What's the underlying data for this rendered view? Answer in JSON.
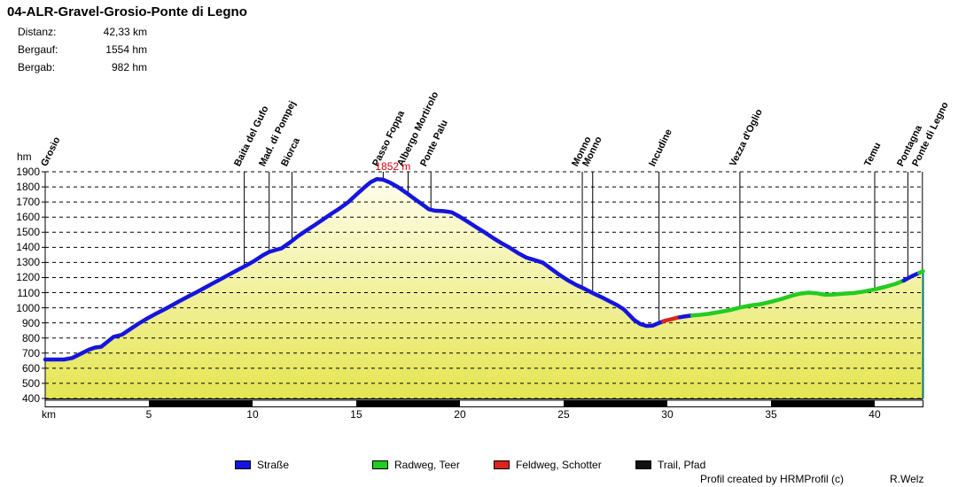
{
  "header": {
    "title": "04-ALR-Gravel-Grosio-Ponte di Legno"
  },
  "stats": [
    {
      "label": "Distanz:",
      "value": "42,33 km"
    },
    {
      "label": "Bergauf:",
      "value": "1554 hm"
    },
    {
      "label": "Bergab:",
      "value": "982 hm"
    }
  ],
  "legend": [
    {
      "label": "Straße",
      "surface": "road"
    },
    {
      "label": "Radweg, Teer",
      "surface": "bike"
    },
    {
      "label": "Feldweg, Schotter",
      "surface": "gravel"
    },
    {
      "label": "Trail, Pfad",
      "surface": "trail"
    }
  ],
  "surface_colors": {
    "road": "#1515dd",
    "bike": "#22cc22",
    "gravel": "#dd2222",
    "trail": "#111111"
  },
  "footer": {
    "created": "Profil created by HRMProfil (c)",
    "author": "R.Welz"
  },
  "chart_data": {
    "type": "area",
    "xlabel": "km",
    "ylabel": "hm",
    "xlim": [
      0,
      42.33
    ],
    "ylim": [
      400,
      1900
    ],
    "x_ticks": [
      5,
      10,
      15,
      20,
      25,
      30,
      35,
      40
    ],
    "y_ticks": [
      400,
      500,
      600,
      700,
      800,
      900,
      1000,
      1100,
      1200,
      1300,
      1400,
      1500,
      1600,
      1700,
      1800,
      1900
    ],
    "grid": "dashed-horizontal",
    "fill_gradient": [
      "#fffef2",
      "#e5e552"
    ],
    "end_line_color": "#007878",
    "scale_bar": {
      "interval_km": 5,
      "colors": [
        "#ffffff",
        "#000000"
      ]
    },
    "peak_annotation": {
      "text": "1852 m",
      "km": 16.0,
      "hm": 1852,
      "color": "#dd0000"
    },
    "locations": [
      {
        "name": "Grosio",
        "km": 0.3,
        "line": false
      },
      {
        "name": "Baita del Gufo",
        "km": 9.6,
        "line": true
      },
      {
        "name": "Mad. di Pompej",
        "km": 10.8,
        "line": true
      },
      {
        "name": "Biorca",
        "km": 11.9,
        "line": true
      },
      {
        "name": "Passo Foppa",
        "km": 16.3,
        "line": true
      },
      {
        "name": "Albergo Mortirolo",
        "km": 17.5,
        "line": true
      },
      {
        "name": "Ponte Palu",
        "km": 18.6,
        "line": true
      },
      {
        "name": "Monno",
        "km": 25.9,
        "line": true
      },
      {
        "name": "Monno",
        "km": 26.4,
        "line": true
      },
      {
        "name": "Incudine",
        "km": 29.6,
        "line": true
      },
      {
        "name": "Vezza d'Oglio",
        "km": 33.5,
        "line": true
      },
      {
        "name": "Temu",
        "km": 40.0,
        "line": true
      },
      {
        "name": "Pontagna",
        "km": 41.6,
        "line": true
      },
      {
        "name": "Ponte di Legno",
        "km": 42.3,
        "line": true
      }
    ],
    "segments": [
      {
        "from": 0,
        "to": 29.8,
        "surface": "road"
      },
      {
        "from": 29.8,
        "to": 30.6,
        "surface": "gravel"
      },
      {
        "from": 30.6,
        "to": 31.2,
        "surface": "road"
      },
      {
        "from": 31.2,
        "to": 41.4,
        "surface": "bike"
      },
      {
        "from": 41.4,
        "to": 42.15,
        "surface": "road"
      },
      {
        "from": 42.15,
        "to": 42.33,
        "surface": "bike"
      }
    ],
    "profile": [
      [
        0,
        658
      ],
      [
        0.9,
        658
      ],
      [
        1.3,
        668
      ],
      [
        1.7,
        695
      ],
      [
        2.1,
        722
      ],
      [
        2.4,
        737
      ],
      [
        2.7,
        742
      ],
      [
        3.0,
        775
      ],
      [
        3.3,
        808
      ],
      [
        3.7,
        822
      ],
      [
        4.1,
        858
      ],
      [
        4.5,
        895
      ],
      [
        4.9,
        928
      ],
      [
        5.3,
        958
      ],
      [
        5.7,
        986
      ],
      [
        6.1,
        1015
      ],
      [
        6.5,
        1046
      ],
      [
        6.9,
        1075
      ],
      [
        7.3,
        1103
      ],
      [
        7.7,
        1133
      ],
      [
        8.1,
        1163
      ],
      [
        8.5,
        1192
      ],
      [
        8.9,
        1222
      ],
      [
        9.3,
        1252
      ],
      [
        9.7,
        1280
      ],
      [
        10.1,
        1312
      ],
      [
        10.5,
        1348
      ],
      [
        10.8,
        1370
      ],
      [
        11.1,
        1382
      ],
      [
        11.4,
        1394
      ],
      [
        11.8,
        1432
      ],
      [
        12.2,
        1475
      ],
      [
        12.6,
        1512
      ],
      [
        13.0,
        1548
      ],
      [
        13.4,
        1585
      ],
      [
        13.8,
        1622
      ],
      [
        14.2,
        1658
      ],
      [
        14.6,
        1697
      ],
      [
        15.0,
        1748
      ],
      [
        15.4,
        1798
      ],
      [
        15.7,
        1832
      ],
      [
        16.0,
        1852
      ],
      [
        16.3,
        1848
      ],
      [
        16.6,
        1830
      ],
      [
        17.0,
        1800
      ],
      [
        17.4,
        1762
      ],
      [
        17.8,
        1722
      ],
      [
        18.2,
        1682
      ],
      [
        18.5,
        1652
      ],
      [
        18.8,
        1642
      ],
      [
        19.2,
        1640
      ],
      [
        19.6,
        1632
      ],
      [
        20.0,
        1602
      ],
      [
        20.4,
        1568
      ],
      [
        20.8,
        1532
      ],
      [
        21.2,
        1498
      ],
      [
        21.6,
        1462
      ],
      [
        22.0,
        1428
      ],
      [
        22.4,
        1398
      ],
      [
        22.8,
        1362
      ],
      [
        23.2,
        1332
      ],
      [
        23.6,
        1316
      ],
      [
        24.0,
        1298
      ],
      [
        24.4,
        1258
      ],
      [
        24.8,
        1218
      ],
      [
        25.2,
        1182
      ],
      [
        25.6,
        1152
      ],
      [
        26.0,
        1126
      ],
      [
        26.4,
        1098
      ],
      [
        26.8,
        1072
      ],
      [
        27.2,
        1044
      ],
      [
        27.6,
        1016
      ],
      [
        27.9,
        990
      ],
      [
        28.1,
        962
      ],
      [
        28.4,
        920
      ],
      [
        28.7,
        892
      ],
      [
        29.0,
        880
      ],
      [
        29.3,
        882
      ],
      [
        29.6,
        900
      ],
      [
        29.9,
        915
      ],
      [
        30.2,
        925
      ],
      [
        30.5,
        935
      ],
      [
        30.8,
        942
      ],
      [
        31.1,
        948
      ],
      [
        31.5,
        952
      ],
      [
        32.0,
        960
      ],
      [
        32.5,
        972
      ],
      [
        33.0,
        984
      ],
      [
        33.5,
        1002
      ],
      [
        34.0,
        1015
      ],
      [
        34.5,
        1024
      ],
      [
        35.0,
        1040
      ],
      [
        35.5,
        1058
      ],
      [
        36.0,
        1080
      ],
      [
        36.4,
        1094
      ],
      [
        36.8,
        1100
      ],
      [
        37.2,
        1096
      ],
      [
        37.6,
        1086
      ],
      [
        38.0,
        1088
      ],
      [
        38.5,
        1094
      ],
      [
        39.0,
        1098
      ],
      [
        39.5,
        1108
      ],
      [
        40.0,
        1122
      ],
      [
        40.5,
        1138
      ],
      [
        41.0,
        1158
      ],
      [
        41.4,
        1180
      ],
      [
        41.8,
        1210
      ],
      [
        42.1,
        1228
      ],
      [
        42.33,
        1242
      ]
    ]
  }
}
